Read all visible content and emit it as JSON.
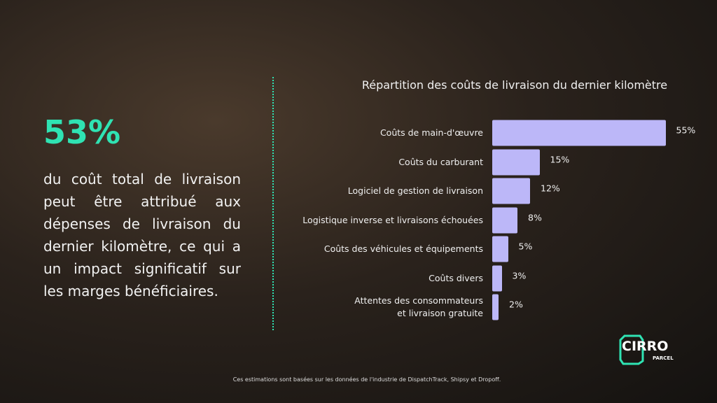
{
  "headline": {
    "stat": "53%",
    "text": "du coût total de livraison peut être attribué aux dépenses de livraison du dernier kilomètre, ce qui a un impact significatif sur les marges bénéficiaires."
  },
  "chart_data": {
    "type": "hbar",
    "title": "Répartition des coûts de livraison du dernier kilomètre",
    "categories": [
      "Coûts de main-d'œuvre",
      "Coûts du carburant",
      "Logiciel de gestion de livraison",
      "Logistique inverse et livraisons échouées",
      "Coûts des véhicules et équipements",
      "Coûts divers",
      "Attentes des consommateurs\net livraison gratuite"
    ],
    "values": [
      55,
      15,
      12,
      8,
      5,
      3,
      2
    ],
    "value_labels": [
      "55%",
      "15%",
      "12%",
      "8%",
      "5%",
      "3%",
      "2%"
    ],
    "color": "#bcb7f8"
  },
  "footer": "Ces estimations sont basées sur les données de l'industrie de DispatchTrack, Shipsy et Dropoff.",
  "logo": {
    "name": "CIRRO",
    "sub": "PARCEL"
  }
}
